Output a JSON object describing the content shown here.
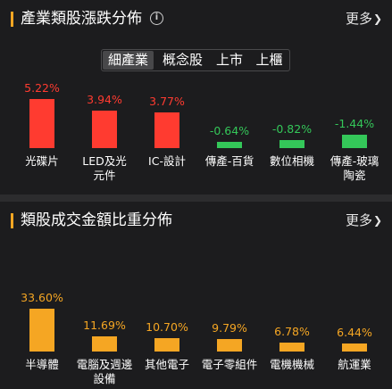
{
  "colors": {
    "up": "#ff3b30",
    "down": "#34c759",
    "volume": "#f5a623",
    "label": "#ffffff"
  },
  "industry": {
    "title": "產業類股漲跌分佈",
    "info_icon": "info-circle-icon",
    "more_label": "更多",
    "chevron_icon": "chevron-right-icon",
    "tabs": [
      {
        "label": "細產業",
        "active": true
      },
      {
        "label": "概念股",
        "active": false
      },
      {
        "label": "上市",
        "active": false
      },
      {
        "label": "上櫃",
        "active": false
      }
    ]
  },
  "volume": {
    "title": "類股成交金額比重分佈",
    "more_label": "更多",
    "chevron_icon": "chevron-right-icon"
  },
  "chart_data": [
    {
      "type": "bar",
      "categories": [
        "光碟片",
        "LED及光元件",
        "IC-設計",
        "傳產-百貨",
        "數位相機",
        "傳產-玻璃陶瓷"
      ],
      "labels": [
        [
          "光碟片"
        ],
        [
          "LED及光",
          "元件"
        ],
        [
          "IC-設計"
        ],
        [
          "傳產-百貨"
        ],
        [
          "數位相機"
        ],
        [
          "傳產-玻璃",
          "陶瓷"
        ]
      ],
      "values": [
        5.22,
        3.94,
        3.77,
        -0.64,
        -0.82,
        -1.44
      ],
      "value_labels": [
        "5.22%",
        "3.94%",
        "3.77%",
        "-0.64%",
        "-0.82%",
        "-1.44%"
      ]
    },
    {
      "type": "bar",
      "categories": [
        "半導體",
        "電腦及週邊設備",
        "其他電子",
        "電子零組件",
        "電機機械",
        "航運業"
      ],
      "labels": [
        [
          "半導體"
        ],
        [
          "電腦及週邊",
          "設備"
        ],
        [
          "其他電子"
        ],
        [
          "電子零組件"
        ],
        [
          "電機機械"
        ],
        [
          "航運業"
        ]
      ],
      "values": [
        33.6,
        11.69,
        10.7,
        9.79,
        6.78,
        6.44
      ],
      "value_labels": [
        "33.60%",
        "11.69%",
        "10.70%",
        "9.79%",
        "6.78%",
        "6.44%"
      ]
    }
  ]
}
